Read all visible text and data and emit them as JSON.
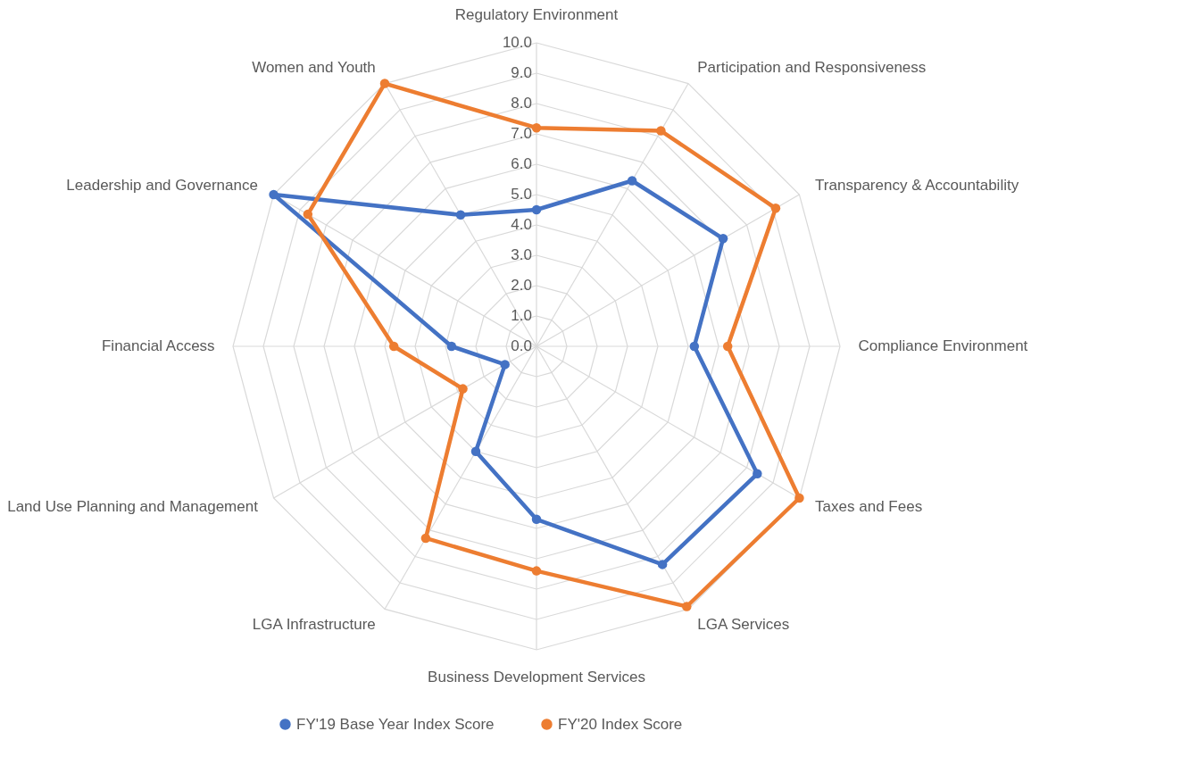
{
  "chart_data": {
    "type": "radar",
    "categories": [
      "Regulatory Environment",
      "Participation and Responsiveness",
      "Transparency & Accountability",
      "Compliance Environment",
      "Taxes and Fees",
      "LGA Services",
      "Business Development Services",
      "LGA Infrastructure",
      "Land Use Planning and Management",
      "Financial Access",
      "Leadership and Governance",
      "Women and Youth"
    ],
    "series": [
      {
        "name": "FY'19 Base Year Index Score",
        "color": "#4472c4",
        "values": [
          4.5,
          6.3,
          7.1,
          5.2,
          8.4,
          8.3,
          5.7,
          4.0,
          1.2,
          2.8,
          10.0,
          5.0
        ]
      },
      {
        "name": "FY'20 Index Score",
        "color": "#ed7d31",
        "values": [
          7.2,
          8.2,
          9.1,
          6.3,
          10.0,
          9.9,
          7.4,
          7.3,
          2.8,
          4.7,
          8.7,
          10.0
        ]
      }
    ],
    "ylim": [
      0,
      10
    ],
    "yticks": [
      {
        "value": 0,
        "label": "0.0"
      },
      {
        "value": 1,
        "label": "1.0"
      },
      {
        "value": 2,
        "label": "2.0"
      },
      {
        "value": 3,
        "label": "3.0"
      },
      {
        "value": 4,
        "label": "4.0"
      },
      {
        "value": 5,
        "label": "5.0"
      },
      {
        "value": 6,
        "label": "6.0"
      },
      {
        "value": 7,
        "label": "7.0"
      },
      {
        "value": 8,
        "label": "8.0"
      },
      {
        "value": 9,
        "label": "9.0"
      },
      {
        "value": 10,
        "label": "10.0"
      }
    ],
    "grid": true,
    "legend": "bottom",
    "marker": "circle",
    "line_style": "solid"
  }
}
